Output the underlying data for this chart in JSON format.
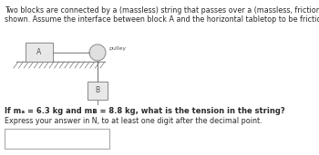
{
  "title_line1": "Two blocks are connected by a (massless) string that passes over a (massless, frictionless) pulley as",
  "title_line2": "shown. Assume the interface between block A and the horizontal tabletop to be frictionless.",
  "question_text": "If mₐ = 6.3 kg and mʙ = 8.8 kg, what is the tension in the string?",
  "instruction_text": "Express your answer in N, to at least one digit after the decimal point.",
  "bg_color": "#ffffff",
  "text_color": "#2a2a2a",
  "block_A_label": "A",
  "block_B_label": "B",
  "pulley_label": "pulley",
  "table_color": "#888888",
  "string_color": "#777777",
  "answer_box_color": "#dddddd"
}
